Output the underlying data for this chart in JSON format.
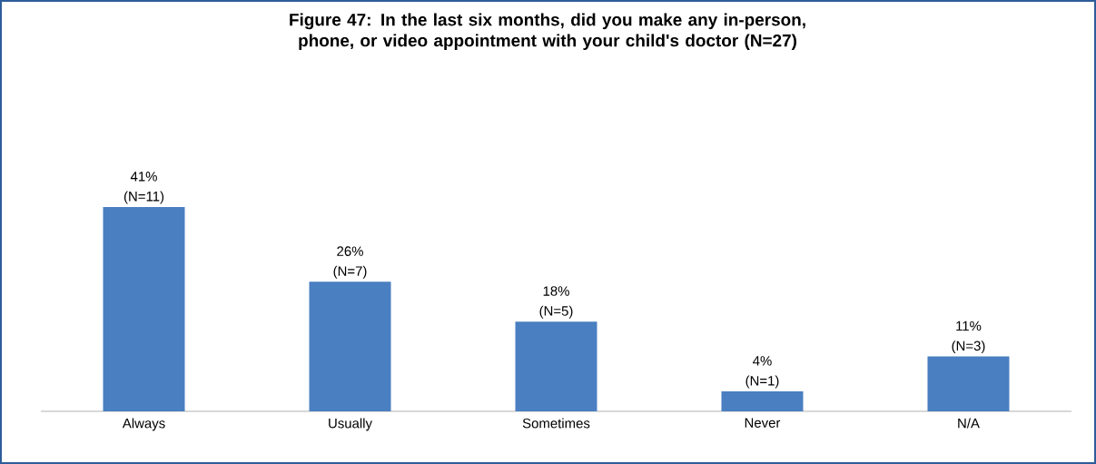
{
  "chart_data": {
    "type": "bar",
    "title": "Figure 47: In the last six months, did you make any in-person, phone, or video appointment with your child's doctor (N=27)",
    "categories": [
      "Always",
      "Usually",
      "Sometimes",
      "Never",
      "N/A"
    ],
    "values": [
      41,
      26,
      18,
      4,
      11
    ],
    "value_labels": [
      "41% (N=11)",
      "26% (N=7)",
      "18% (N=5)",
      "4% (N=1)",
      "11% (N=3)"
    ],
    "color": "#4a7fc1",
    "tick_labels": "x"
  }
}
